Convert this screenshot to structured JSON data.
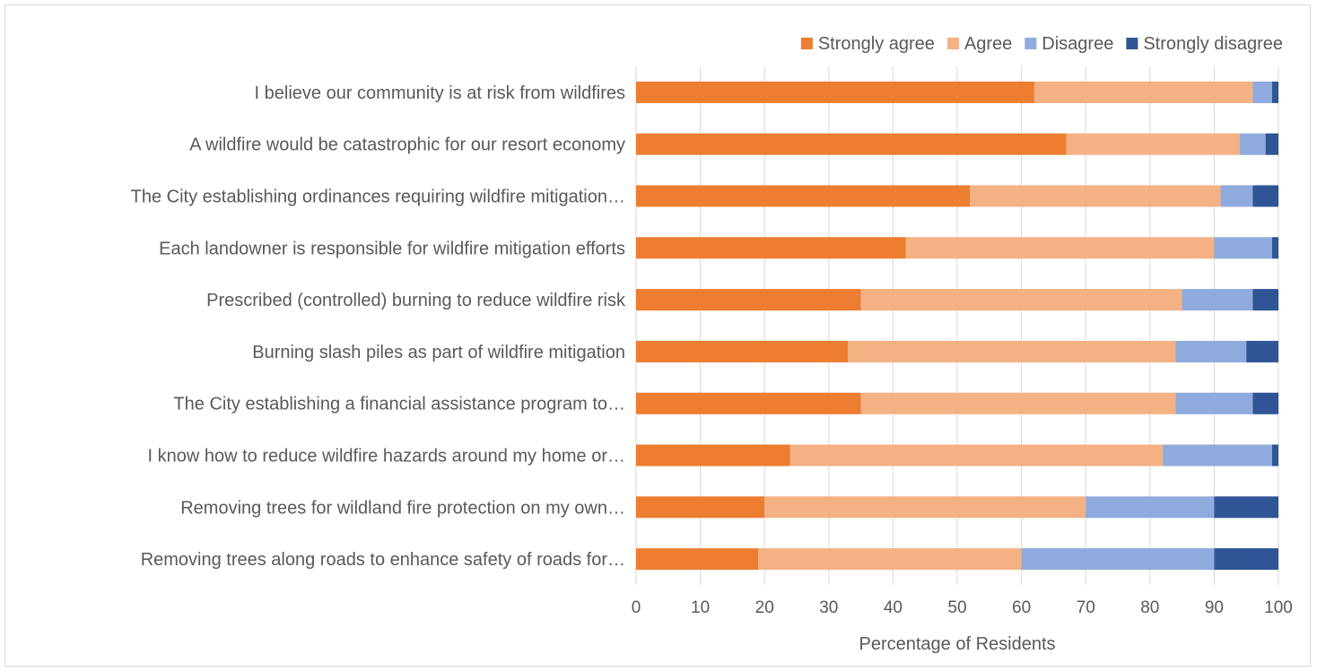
{
  "chart_data": {
    "type": "bar",
    "orientation": "horizontal",
    "stacked": true,
    "categories": [
      "I believe our community is at risk from wildfires",
      "A wildfire would be catastrophic for our resort economy",
      "The City establishing ordinances requiring wildfire mitigation…",
      "Each landowner is responsible for wildfire mitigation efforts",
      "Prescribed (controlled) burning to reduce wildfire risk",
      "Burning slash piles as part of wildfire mitigation",
      "The City establishing a financial assistance program to…",
      "I know how to reduce wildfire hazards around my home or…",
      "Removing trees for wildland fire protection on my own…",
      "Removing trees along roads to enhance safety of roads for…"
    ],
    "series": [
      {
        "name": "Strongly agree",
        "color": "#ed7d31",
        "values": [
          62,
          67,
          52,
          42,
          35,
          33,
          35,
          24,
          20,
          19
        ]
      },
      {
        "name": "Agree",
        "color": "#f4b183",
        "values": [
          34,
          27,
          39,
          48,
          50,
          51,
          49,
          58,
          50,
          41
        ]
      },
      {
        "name": "Disagree",
        "color": "#8faadc",
        "values": [
          3,
          4,
          5,
          9,
          11,
          11,
          12,
          17,
          20,
          30
        ]
      },
      {
        "name": "Strongly disagree",
        "color": "#2f5597",
        "values": [
          1,
          2,
          4,
          1,
          4,
          5,
          4,
          1,
          10,
          10
        ]
      }
    ],
    "xlabel": "Percentage of Residents",
    "ylabel": "",
    "title": "",
    "xlim": [
      0,
      100
    ],
    "xticks": [
      0,
      10,
      20,
      30,
      40,
      50,
      60,
      70,
      80,
      90,
      100
    ],
    "grid": "vertical",
    "legend_position": "top-right"
  }
}
